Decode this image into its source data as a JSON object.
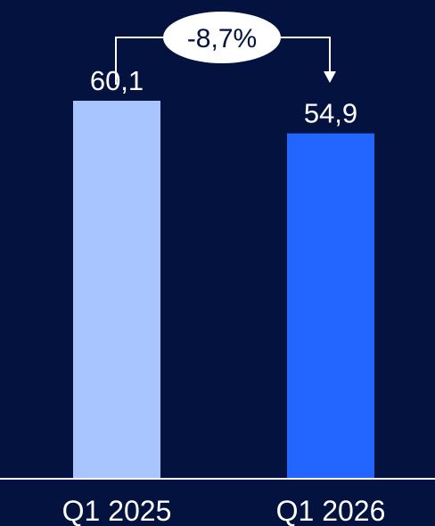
{
  "colors": {
    "background": "#04123f",
    "bar_q1_2025": "#a8c5ff",
    "bar_q1_2026": "#2266ff",
    "text": "#ffffff",
    "axis": "#ffffff",
    "callout_fill": "#ffffff",
    "callout_text": "#04123f"
  },
  "chart_data": {
    "type": "bar",
    "categories": [
      "Q1 2025",
      "Q1 2026"
    ],
    "values": [
      60.1,
      54.9
    ],
    "value_labels": [
      "60,1",
      "54,9"
    ],
    "bar_colors": [
      "#a8c5ff",
      "#2266ff"
    ],
    "change_label": "-8,7%",
    "title": "",
    "xlabel": "",
    "ylabel": "",
    "ylim": [
      0,
      60.1
    ],
    "grid": false
  }
}
